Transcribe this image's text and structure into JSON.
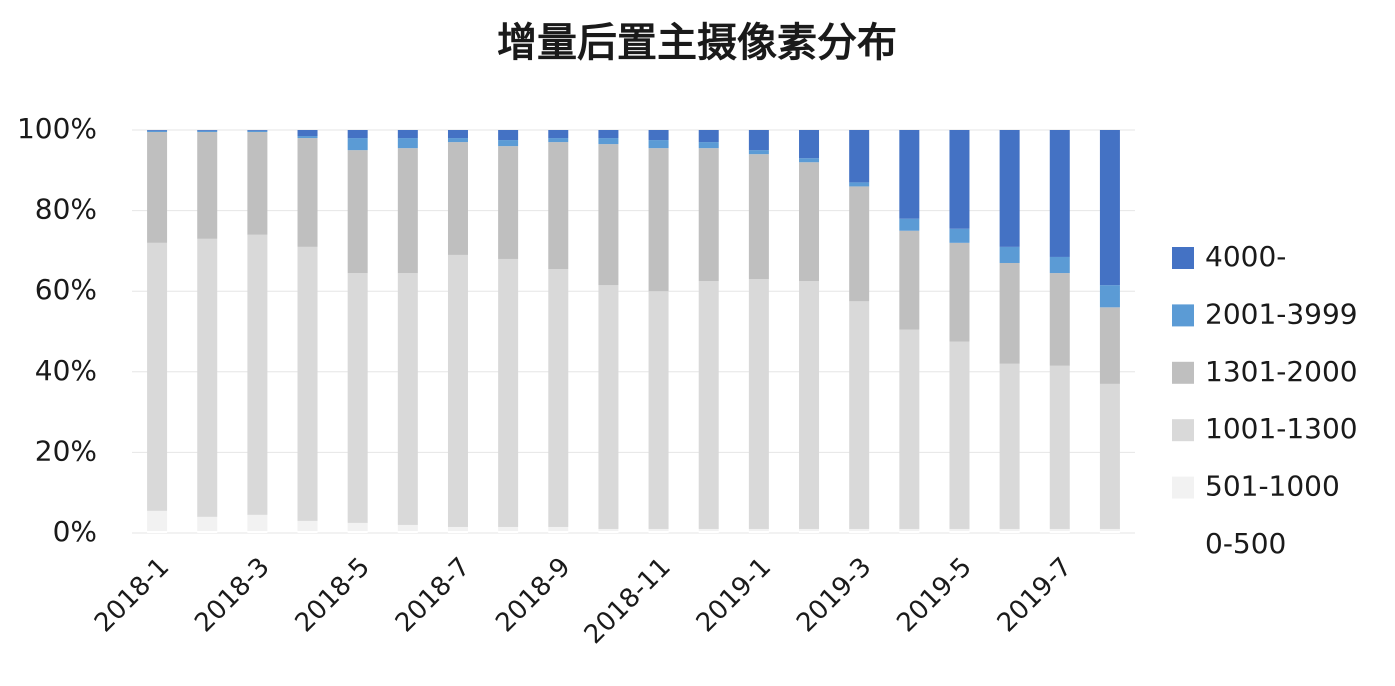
{
  "chart_data": {
    "type": "stacked_bar",
    "title": "增量后置主摄像素分布",
    "categories": [
      "2018-1",
      null,
      "2018-3",
      null,
      "2018-5",
      null,
      "2018-7",
      null,
      "2018-9",
      null,
      "2018-11",
      null,
      "2019-1",
      null,
      "2019-3",
      null,
      "2019-5",
      null,
      "2019-7",
      null
    ],
    "series": [
      {
        "name": "0-500",
        "color": "#ffffff",
        "values": [
          0.5,
          0.5,
          0.5,
          0.5,
          0.5,
          0.5,
          0.5,
          0.5,
          0.5,
          0.5,
          0.5,
          0.5,
          0.5,
          0.5,
          0.5,
          0.5,
          0.5,
          0.5,
          0.5,
          0.5
        ]
      },
      {
        "name": "501-1000",
        "color": "#f2f2f2",
        "values": [
          5,
          3.5,
          4,
          2.5,
          2,
          1.5,
          1,
          1,
          1,
          0.5,
          0.5,
          0.5,
          0.5,
          0.5,
          0.5,
          0.5,
          0.5,
          0.5,
          0.5,
          0.5
        ]
      },
      {
        "name": "1001-1300",
        "color": "#d9d9d9",
        "values": [
          66.5,
          69,
          69.5,
          68,
          62,
          62.5,
          67.5,
          66.5,
          64,
          60.5,
          59,
          61.5,
          62,
          61.5,
          56.5,
          49.5,
          46.5,
          41,
          40.5,
          36
        ]
      },
      {
        "name": "1301-2000",
        "color": "#bfbfbf",
        "values": [
          27.5,
          26.5,
          25.5,
          27,
          30.5,
          31,
          28,
          28,
          31.5,
          35,
          35.5,
          33,
          31,
          29.5,
          28.5,
          24.5,
          24.5,
          25,
          23,
          19
        ]
      },
      {
        "name": "2001-3999",
        "color": "#5b9bd5",
        "values": [
          0.3,
          0.3,
          0.3,
          0.5,
          3,
          2.5,
          1,
          1.5,
          1,
          1.5,
          2,
          1.5,
          1,
          1,
          1,
          3,
          3.5,
          4,
          4,
          5.5
        ]
      },
      {
        "name": "4000-",
        "color": "#4472c4",
        "values": [
          0.2,
          0.2,
          0.2,
          1.5,
          2,
          2,
          2,
          2.5,
          2,
          2,
          2.5,
          3,
          5,
          7,
          13,
          22,
          24.5,
          29,
          31.5,
          38.5
        ]
      }
    ],
    "ylim": [
      0,
      100
    ],
    "yticks": [
      {
        "value": 0,
        "label": "0%"
      },
      {
        "value": 20,
        "label": "20%"
      },
      {
        "value": 40,
        "label": "40%"
      },
      {
        "value": 60,
        "label": "60%"
      },
      {
        "value": 80,
        "label": "80%"
      },
      {
        "value": 100,
        "label": "100%"
      }
    ],
    "grid": true,
    "legend": "right"
  }
}
